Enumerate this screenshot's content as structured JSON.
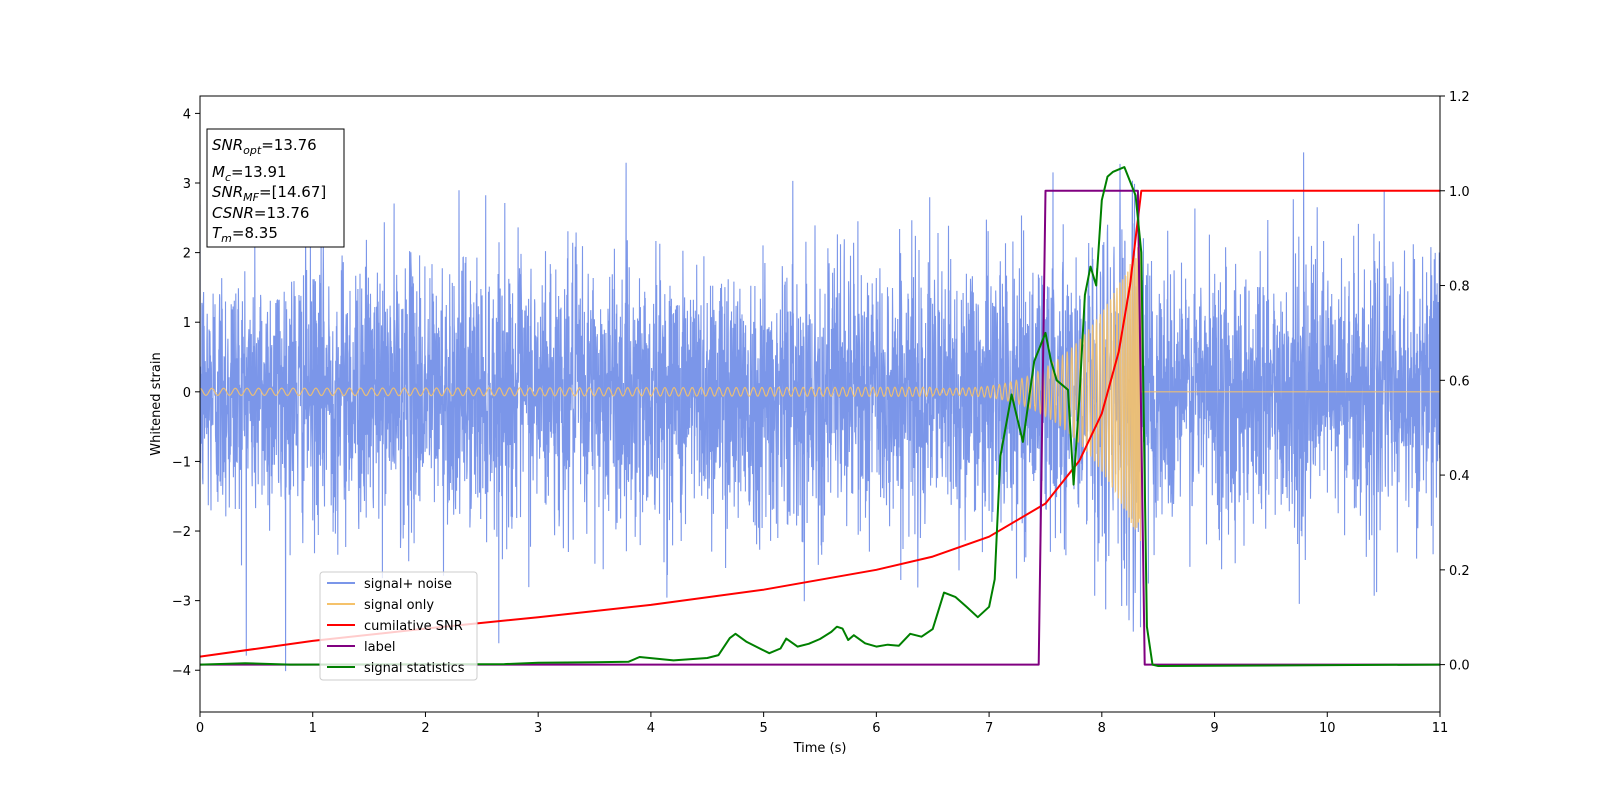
{
  "chart_data": {
    "type": "line",
    "xlabel": "Time (s)",
    "ylabel": "Whitened strain",
    "xlim": [
      0,
      11
    ],
    "ylim": [
      -4.6,
      4.25
    ],
    "y2lim": [
      -0.1,
      1.2
    ],
    "x_ticks": [
      "0",
      "1",
      "2",
      "3",
      "4",
      "5",
      "6",
      "7",
      "8",
      "9",
      "10",
      "11"
    ],
    "y_ticks": [
      "−4",
      "−3",
      "−2",
      "−1",
      "0",
      "1",
      "2",
      "3",
      "4"
    ],
    "y2_ticks": [
      "0.0",
      "0.2",
      "0.4",
      "0.6",
      "0.8",
      "1.0",
      "1.2"
    ],
    "legend_position": "lower-left",
    "info_box": {
      "snr_opt": {
        "main": "SNR",
        "sub": "opt",
        "value": "=13.76"
      },
      "mc": {
        "main": "M",
        "sub": "c",
        "value": "=13.91"
      },
      "snr_mf": {
        "main": "SNR",
        "sub": "MF",
        "value": "=[14.67]"
      },
      "csnr": {
        "main": "CSNR",
        "value": "=13.76"
      },
      "tm": {
        "main": "T",
        "sub": "m",
        "value": "=8.35"
      }
    },
    "series": [
      {
        "name": "signal+ noise",
        "color": "#7b96e9",
        "axis": "left",
        "description_level": "gaussian noise approx. std 1.0 plus chirp, extremes about -4.1 to 3.9"
      },
      {
        "name": "signal only",
        "color": "#f5c26b",
        "axis": "left",
        "chirp": {
          "start_time": 0,
          "merger_time": 8.35,
          "start_amplitude": 0.05,
          "peak_amplitude": 2.2
        }
      },
      {
        "name": "cumilative SNR",
        "color": "#ff0000",
        "axis": "right",
        "points": [
          [
            0,
            0.017
          ],
          [
            1,
            0.05
          ],
          [
            2,
            0.076
          ],
          [
            3,
            0.1
          ],
          [
            4,
            0.126
          ],
          [
            5,
            0.158
          ],
          [
            6,
            0.2
          ],
          [
            6.5,
            0.228
          ],
          [
            7,
            0.27
          ],
          [
            7.5,
            0.34
          ],
          [
            7.8,
            0.43
          ],
          [
            8.0,
            0.53
          ],
          [
            8.15,
            0.66
          ],
          [
            8.25,
            0.8
          ],
          [
            8.3,
            0.9
          ],
          [
            8.35,
            1.0
          ],
          [
            11,
            1.0
          ]
        ]
      },
      {
        "name": "label",
        "color": "#800080",
        "axis": "right",
        "points": [
          [
            0,
            0
          ],
          [
            7.44,
            0
          ],
          [
            7.5,
            1
          ],
          [
            8.32,
            1
          ],
          [
            8.38,
            0
          ],
          [
            11,
            0
          ]
        ]
      },
      {
        "name": "signal statistics",
        "color": "#008000",
        "axis": "right",
        "points": [
          [
            0,
            0
          ],
          [
            0.4,
            0.003
          ],
          [
            0.8,
            0.0
          ],
          [
            2.7,
            0.001
          ],
          [
            3.0,
            0.004
          ],
          [
            3.5,
            0.005
          ],
          [
            3.8,
            0.006
          ],
          [
            3.9,
            0.016
          ],
          [
            4.2,
            0.009
          ],
          [
            4.5,
            0.014
          ],
          [
            4.6,
            0.02
          ],
          [
            4.7,
            0.056
          ],
          [
            4.75,
            0.065
          ],
          [
            4.85,
            0.048
          ],
          [
            5.0,
            0.03
          ],
          [
            5.05,
            0.024
          ],
          [
            5.15,
            0.034
          ],
          [
            5.2,
            0.055
          ],
          [
            5.3,
            0.038
          ],
          [
            5.4,
            0.044
          ],
          [
            5.5,
            0.054
          ],
          [
            5.6,
            0.069
          ],
          [
            5.65,
            0.08
          ],
          [
            5.7,
            0.076
          ],
          [
            5.75,
            0.052
          ],
          [
            5.8,
            0.062
          ],
          [
            5.9,
            0.045
          ],
          [
            6.0,
            0.038
          ],
          [
            6.1,
            0.042
          ],
          [
            6.2,
            0.04
          ],
          [
            6.3,
            0.065
          ],
          [
            6.4,
            0.059
          ],
          [
            6.5,
            0.075
          ],
          [
            6.6,
            0.152
          ],
          [
            6.7,
            0.143
          ],
          [
            6.8,
            0.122
          ],
          [
            6.9,
            0.1
          ],
          [
            7.0,
            0.122
          ],
          [
            7.05,
            0.18
          ],
          [
            7.1,
            0.44
          ],
          [
            7.2,
            0.57
          ],
          [
            7.3,
            0.47
          ],
          [
            7.4,
            0.64
          ],
          [
            7.5,
            0.7
          ],
          [
            7.55,
            0.64
          ],
          [
            7.6,
            0.6
          ],
          [
            7.7,
            0.58
          ],
          [
            7.75,
            0.38
          ],
          [
            7.8,
            0.56
          ],
          [
            7.85,
            0.78
          ],
          [
            7.9,
            0.84
          ],
          [
            7.95,
            0.8
          ],
          [
            8.0,
            0.98
          ],
          [
            8.05,
            1.03
          ],
          [
            8.1,
            1.04
          ],
          [
            8.2,
            1.05
          ],
          [
            8.25,
            1.02
          ],
          [
            8.3,
            0.99
          ],
          [
            8.35,
            0.87
          ],
          [
            8.4,
            0.08
          ],
          [
            8.45,
            0.0
          ],
          [
            8.5,
            -0.003
          ],
          [
            11,
            0.0
          ]
        ]
      }
    ]
  }
}
